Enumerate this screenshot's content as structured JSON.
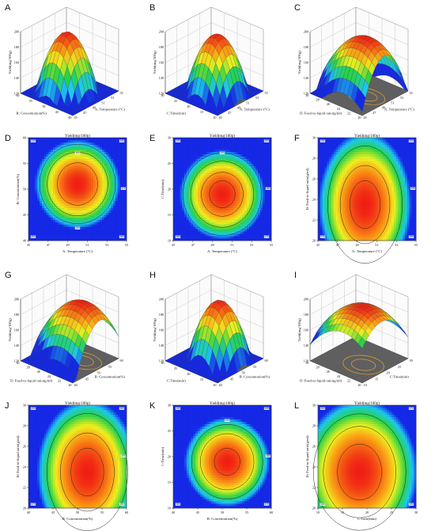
{
  "figure": {
    "background": "#ffffff"
  },
  "chart_data": [
    {
      "id": "A",
      "type": "surface",
      "panel_label": "A",
      "title": "",
      "x": {
        "label": "A: Temperature (°C)",
        "range": [
          45,
          55
        ],
        "ticks": [
          "45",
          "47",
          "49",
          "51",
          "53",
          "55"
        ]
      },
      "y": {
        "label": "B: Concentration(%)",
        "range": [
          40,
          60
        ],
        "ticks": [
          "40",
          "45",
          "50",
          "55",
          "60"
        ]
      },
      "z": {
        "label": "Yield(mg/100g)",
        "range": [
          120,
          200
        ],
        "ticks": [
          "120",
          "140",
          "160",
          "180",
          "200"
        ]
      },
      "optimum": [
        50,
        51
      ],
      "spread": [
        5.5,
        11
      ],
      "peak": 196,
      "floor": 125
    },
    {
      "id": "B",
      "type": "surface",
      "panel_label": "B",
      "title": "",
      "x": {
        "label": "A: Temperature (°C)",
        "range": [
          45,
          55
        ],
        "ticks": [
          "45",
          "47",
          "49",
          "51",
          "53",
          "55"
        ]
      },
      "y": {
        "label": "C:Time(min)",
        "range": [
          10,
          30
        ],
        "ticks": [
          "10",
          "15",
          "20",
          "25",
          "30"
        ]
      },
      "z": {
        "label": "Yield(mg/100g)",
        "range": [
          120,
          200
        ],
        "ticks": [
          "120",
          "140",
          "160",
          "180",
          "200"
        ]
      },
      "optimum": [
        50,
        19
      ],
      "spread": [
        5.5,
        11
      ],
      "peak": 196,
      "floor": 130
    },
    {
      "id": "C",
      "type": "surface",
      "panel_label": "C",
      "title": "",
      "x": {
        "label": "A: Temperature (°C)",
        "range": [
          45,
          55
        ],
        "ticks": [
          "45",
          "47",
          "49",
          "51",
          "53",
          "55"
        ]
      },
      "y": {
        "label": "D: Feed-to-liquid ratio(g/ml)",
        "range": [
          20,
          30
        ],
        "ticks": [
          "20",
          "22",
          "24",
          "26",
          "28",
          "30"
        ]
      },
      "z": {
        "label": "Yield(mg/100g)",
        "range": [
          120,
          200
        ],
        "ticks": [
          "120",
          "140",
          "160",
          "180",
          "200"
        ]
      },
      "optimum": [
        49.8,
        23.5
      ],
      "spread": [
        6,
        9
      ],
      "peak": 196,
      "floor": 140
    },
    {
      "id": "D",
      "type": "contour",
      "panel_label": "D",
      "title": "Yield(mg/100g)",
      "x": {
        "label": "A: Temperature (°C)",
        "range": [
          45,
          55
        ],
        "ticks": [
          "45",
          "47",
          "49",
          "51",
          "53",
          "55"
        ]
      },
      "y": {
        "label": "B: Concentration(%)",
        "range": [
          40,
          60
        ],
        "ticks": [
          "40",
          "45",
          "50",
          "55",
          "60"
        ]
      },
      "optimum": [
        50,
        51
      ],
      "spread": [
        5.5,
        11
      ],
      "peak": 196,
      "floor": 125,
      "contour_levels": [
        140,
        160,
        180
      ],
      "contour_labels": [
        "130",
        "140",
        "150",
        "160",
        "170",
        "180",
        "190"
      ]
    },
    {
      "id": "E",
      "type": "contour",
      "panel_label": "E",
      "title": "Yield(mg/100g)",
      "x": {
        "label": "A: Temperature (°C)",
        "range": [
          45,
          55
        ],
        "ticks": [
          "45",
          "47",
          "49",
          "51",
          "53",
          "55"
        ]
      },
      "y": {
        "label": "C:Time(min)",
        "range": [
          10,
          30
        ],
        "ticks": [
          "10",
          "15",
          "20",
          "25",
          "30"
        ]
      },
      "optimum": [
        50,
        19
      ],
      "spread": [
        5.5,
        11
      ],
      "peak": 196,
      "floor": 130,
      "contour_levels": [
        140,
        160,
        180,
        190
      ],
      "contour_labels": [
        "140",
        "150",
        "160",
        "170",
        "180",
        "190"
      ]
    },
    {
      "id": "F",
      "type": "contour",
      "panel_label": "F",
      "title": "Yield(mg/100g)",
      "x": {
        "label": "A: Temperature (°C)",
        "range": [
          45,
          55
        ],
        "ticks": [
          "45",
          "47",
          "49",
          "51",
          "53",
          "55"
        ]
      },
      "y": {
        "label": "D: Feed-to-liquid ratio(g/ml)",
        "range": [
          20,
          30
        ],
        "ticks": [
          "20",
          "22",
          "24",
          "26",
          "28",
          "30"
        ]
      },
      "optimum": [
        49.8,
        23.5
      ],
      "spread": [
        6,
        9
      ],
      "peak": 196,
      "floor": 140,
      "contour_levels": [
        160,
        180,
        190
      ],
      "contour_labels": [
        "150",
        "160",
        "170",
        "180",
        "190"
      ]
    },
    {
      "id": "G",
      "type": "surface",
      "panel_label": "G",
      "title": "",
      "x": {
        "label": "B: Concentration(%)",
        "range": [
          40,
          60
        ],
        "ticks": [
          "40",
          "45",
          "50",
          "55",
          "60"
        ]
      },
      "y": {
        "label": "D: Feed-to-liquid ratio(g/ml)",
        "range": [
          20,
          30
        ],
        "ticks": [
          "20",
          "22",
          "24",
          "26",
          "28",
          "30"
        ]
      },
      "z": {
        "label": "Yield(mg/100g)",
        "range": [
          120,
          200
        ],
        "ticks": [
          "120",
          "140",
          "160",
          "180",
          "200"
        ]
      },
      "optimum": [
        52,
        23.5
      ],
      "spread": [
        13,
        9
      ],
      "peak": 196,
      "floor": 140
    },
    {
      "id": "H",
      "type": "surface",
      "panel_label": "H",
      "title": "",
      "x": {
        "label": "B: Concentration(%)",
        "range": [
          40,
          60
        ],
        "ticks": [
          "40",
          "45",
          "50",
          "55",
          "60"
        ]
      },
      "y": {
        "label": "C:Time(min)",
        "range": [
          10,
          30
        ],
        "ticks": [
          "10",
          "15",
          "20",
          "25",
          "30"
        ]
      },
      "z": {
        "label": "Yield(mg/100g)",
        "range": [
          120,
          200
        ],
        "ticks": [
          "120",
          "140",
          "160",
          "180",
          "200"
        ]
      },
      "optimum": [
        51,
        19
      ],
      "spread": [
        11,
        11
      ],
      "peak": 196,
      "floor": 130
    },
    {
      "id": "I",
      "type": "surface",
      "panel_label": "I",
      "title": "",
      "x": {
        "label": "C:Time(min)",
        "range": [
          10,
          30
        ],
        "ticks": [
          "10",
          "15",
          "20",
          "25",
          "30"
        ]
      },
      "y": {
        "label": "D: Feed-to-liquid ratio(g/ml)",
        "range": [
          20,
          30
        ],
        "ticks": [
          "20",
          "22",
          "24",
          "26",
          "28",
          "30"
        ]
      },
      "z": {
        "label": "Yield(mg/100g)",
        "range": [
          120,
          200
        ],
        "ticks": [
          "120",
          "140",
          "160",
          "180",
          "200"
        ]
      },
      "optimum": [
        18.5,
        23.5
      ],
      "spread": [
        15,
        9
      ],
      "peak": 196,
      "floor": 155
    },
    {
      "id": "J",
      "type": "contour",
      "panel_label": "J",
      "title": "Yield(mg/100g)",
      "x": {
        "label": "B: Concentration(%)",
        "range": [
          40,
          60
        ],
        "ticks": [
          "40",
          "45",
          "50",
          "55",
          "60"
        ]
      },
      "y": {
        "label": "D: Feed-to-liquid ratio(g/ml)",
        "range": [
          20,
          30
        ],
        "ticks": [
          "20",
          "22",
          "24",
          "26",
          "28",
          "30"
        ]
      },
      "optimum": [
        52,
        23.5
      ],
      "spread": [
        13,
        9
      ],
      "peak": 196,
      "floor": 140,
      "contour_levels": [
        160,
        180,
        190
      ],
      "contour_labels": [
        "150",
        "160",
        "170",
        "180",
        "190"
      ]
    },
    {
      "id": "K",
      "type": "contour",
      "panel_label": "K",
      "title": "Yield(mg/100g)",
      "x": {
        "label": "B: Concentration(%)",
        "range": [
          40,
          60
        ],
        "ticks": [
          "40",
          "45",
          "50",
          "55",
          "60"
        ]
      },
      "y": {
        "label": "C:Time(min)",
        "range": [
          10,
          30
        ],
        "ticks": [
          "10",
          "15",
          "20",
          "25",
          "30"
        ]
      },
      "optimum": [
        51,
        19
      ],
      "spread": [
        11,
        11
      ],
      "peak": 196,
      "floor": 130,
      "contour_levels": [
        150,
        170,
        190
      ],
      "contour_labels": [
        "140",
        "150",
        "160",
        "170",
        "180",
        "190"
      ]
    },
    {
      "id": "L",
      "type": "contour",
      "panel_label": "L",
      "title": "Yield(mg/100g)",
      "x": {
        "label": "C:Time(min)",
        "range": [
          10,
          30
        ],
        "ticks": [
          "10",
          "15",
          "20",
          "25",
          "30"
        ]
      },
      "y": {
        "label": "D: Feed-to-liquid ratio(g/ml)",
        "range": [
          20,
          30
        ],
        "ticks": [
          "20",
          "22",
          "24",
          "26",
          "28",
          "30"
        ]
      },
      "optimum": [
        18.5,
        23.5
      ],
      "spread": [
        15,
        9
      ],
      "peak": 196,
      "floor": 155,
      "contour_levels": [
        170,
        180,
        190
      ],
      "contour_labels": [
        "160",
        "170",
        "180",
        "190"
      ]
    }
  ]
}
